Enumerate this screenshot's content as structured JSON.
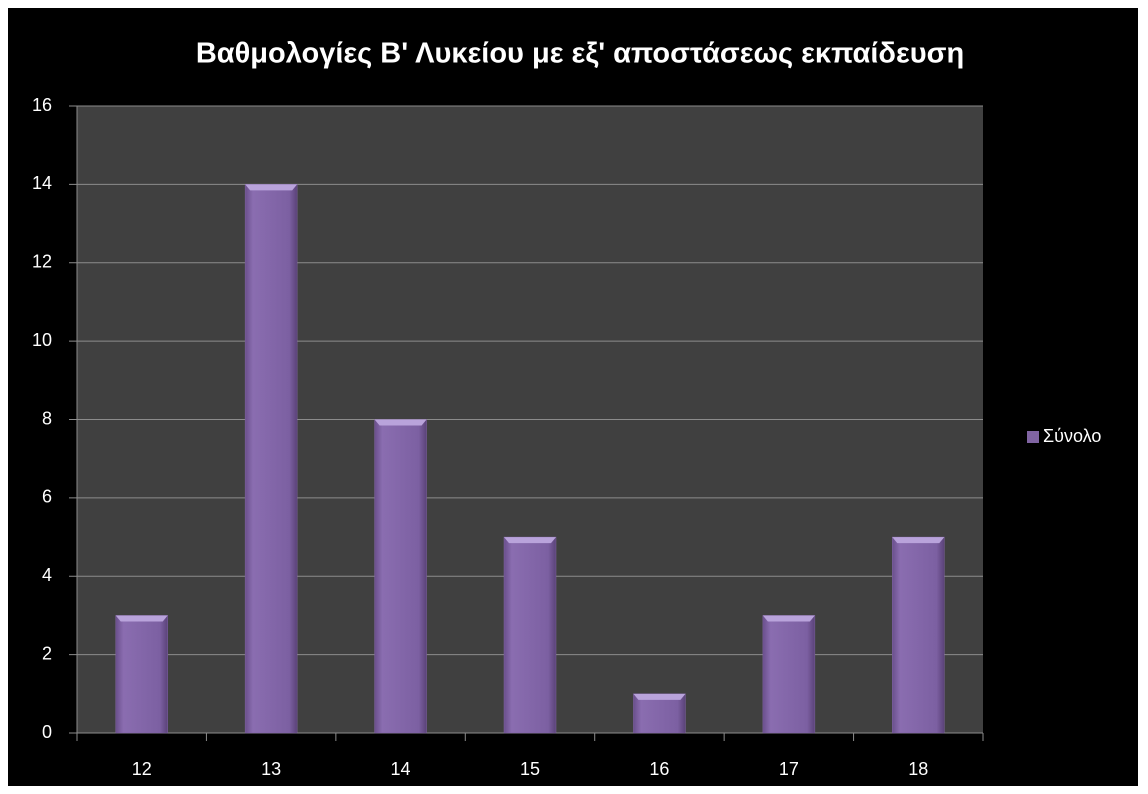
{
  "chart_data": {
    "type": "bar",
    "title": "Βαθμολογίες Β' Λυκείου με εξ' αποστάσεως εκπαίδευση",
    "categories": [
      "12",
      "13",
      "14",
      "15",
      "16",
      "17",
      "18"
    ],
    "series": [
      {
        "name": "Σύνολο",
        "color": "#8064a2",
        "values": [
          3,
          14,
          8,
          5,
          1,
          3,
          5
        ]
      }
    ],
    "ylim": [
      0,
      16
    ],
    "yticks": [
      0,
      2,
      4,
      6,
      8,
      10,
      12,
      14,
      16
    ],
    "grid": true,
    "legend": "right"
  }
}
